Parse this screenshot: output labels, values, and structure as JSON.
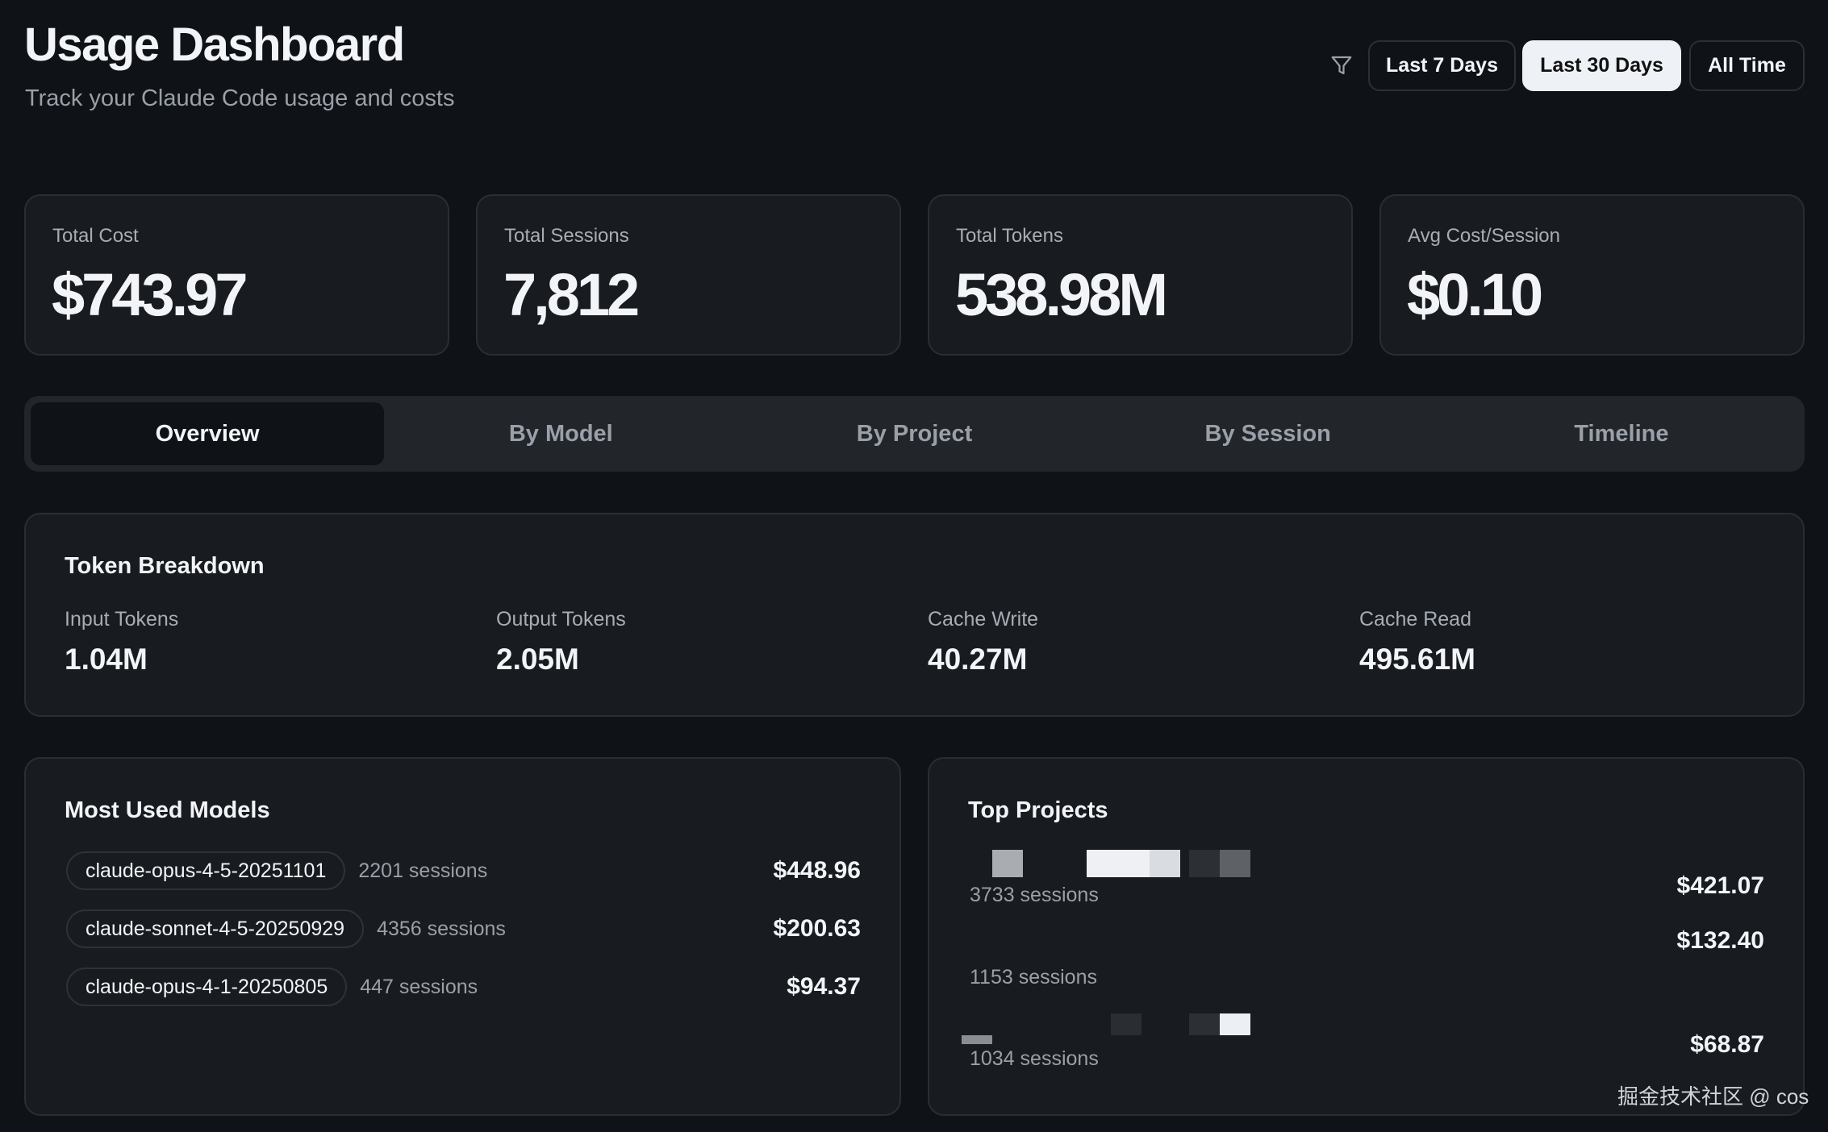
{
  "header": {
    "title": "Usage Dashboard",
    "subtitle": "Track your Claude Code usage and costs"
  },
  "filters": {
    "icon": "filter-icon",
    "ranges": [
      "Last 7 Days",
      "Last 30 Days",
      "All Time"
    ],
    "selected": "Last 30 Days"
  },
  "stats": [
    {
      "label": "Total Cost",
      "value": "$743.97"
    },
    {
      "label": "Total Sessions",
      "value": "7,812"
    },
    {
      "label": "Total Tokens",
      "value": "538.98M"
    },
    {
      "label": "Avg Cost/Session",
      "value": "$0.10"
    }
  ],
  "tabs": [
    "Overview",
    "By Model",
    "By Project",
    "By Session",
    "Timeline"
  ],
  "active_tab": "Overview",
  "token_breakdown": {
    "title": "Token Breakdown",
    "items": [
      {
        "label": "Input Tokens",
        "value": "1.04M"
      },
      {
        "label": "Output Tokens",
        "value": "2.05M"
      },
      {
        "label": "Cache Write",
        "value": "40.27M"
      },
      {
        "label": "Cache Read",
        "value": "495.61M"
      }
    ]
  },
  "models": {
    "title": "Most Used Models",
    "items": [
      {
        "name": "claude-opus-4-5-20251101",
        "sessions": "2201 sessions",
        "cost": "$448.96"
      },
      {
        "name": "claude-sonnet-4-5-20250929",
        "sessions": "4356 sessions",
        "cost": "$200.63"
      },
      {
        "name": "claude-opus-4-1-20250805",
        "sessions": "447 sessions",
        "cost": "$94.37"
      }
    ]
  },
  "projects": {
    "title": "Top Projects",
    "items": [
      {
        "sessions": "3733 sessions",
        "cost": "$421.07"
      },
      {
        "sessions": "1153 sessions",
        "cost": "$132.40"
      },
      {
        "sessions": "1034 sessions",
        "cost": "$68.87"
      }
    ]
  },
  "watermark": "掘金技术社区 @ cos",
  "colors": {
    "background": "#0f1216",
    "card": "#181b1f",
    "border": "#2a2e33",
    "active_button": "#eef1f5"
  }
}
